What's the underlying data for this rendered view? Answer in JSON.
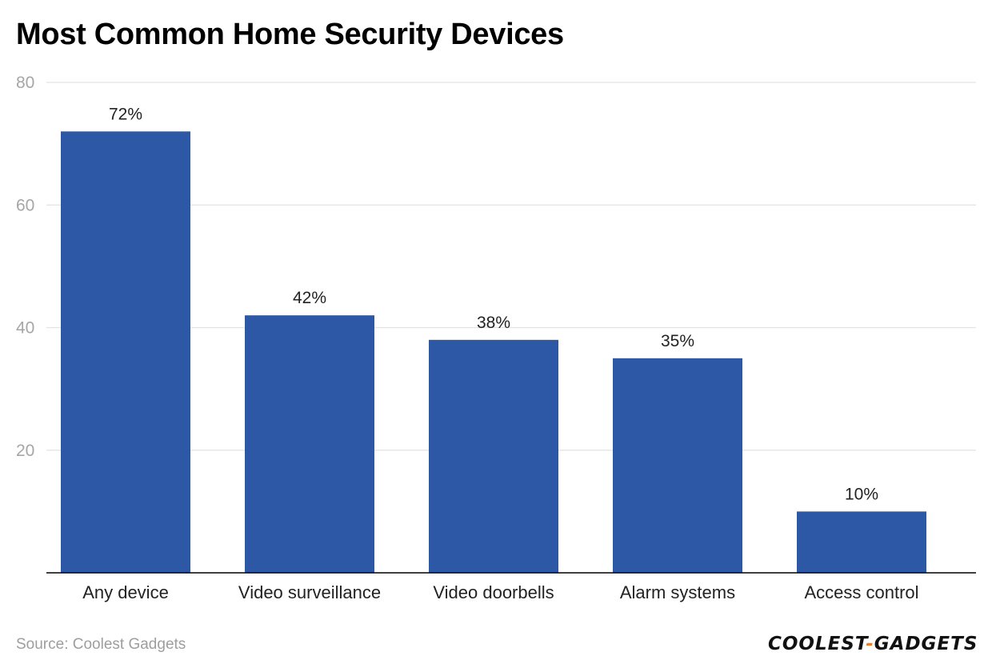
{
  "chart_data": {
    "type": "bar",
    "title": "Most Common Home Security Devices",
    "categories": [
      "Any device",
      "Video surveillance",
      "Video doorbells",
      "Alarm systems",
      "Access control"
    ],
    "values": [
      72,
      42,
      38,
      35,
      10
    ],
    "data_labels": [
      "72%",
      "42%",
      "38%",
      "35%",
      "10%"
    ],
    "y_ticks": [
      "20",
      "40",
      "60",
      "80"
    ],
    "ylim": [
      0,
      80
    ],
    "xlabel": "",
    "ylabel": "",
    "grid": true,
    "legend": "none",
    "bar_color": "#2c58a6"
  },
  "footer": {
    "source": "Source: Coolest Gadgets",
    "brand_left": "COOLEST",
    "brand_dash": "-",
    "brand_right": "GADGETS",
    "brand_accent": "#f07d24"
  }
}
